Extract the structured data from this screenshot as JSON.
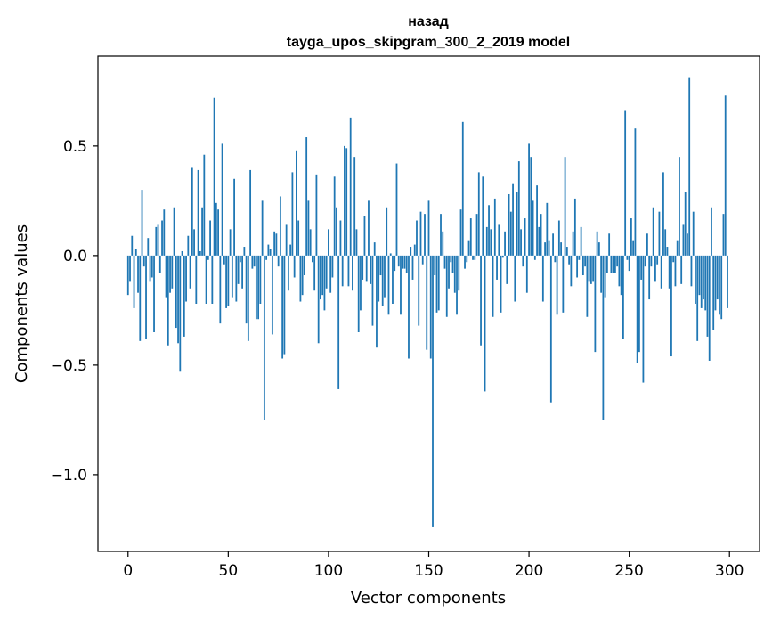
{
  "chart_data": {
    "type": "bar",
    "title": "назад",
    "subtitle": "tayga_upos_skipgram_300_2_2019 model",
    "xlabel": "Vector components",
    "ylabel": "Components values",
    "xlim": [
      -15,
      315
    ],
    "ylim": [
      -1.35,
      0.91
    ],
    "xticks": [
      0,
      50,
      100,
      150,
      200,
      250,
      300
    ],
    "xtick_labels": [
      "0",
      "50",
      "100",
      "150",
      "200",
      "250",
      "300"
    ],
    "yticks": [
      -1.0,
      -0.5,
      0.0,
      0.5
    ],
    "ytick_labels": [
      "−1.0",
      "−0.5",
      "0.0",
      "0.5"
    ],
    "bar_color": "#1f77b4",
    "grid": false,
    "values": [
      -0.18,
      -0.12,
      0.09,
      -0.24,
      0.03,
      -0.17,
      -0.39,
      0.3,
      -0.05,
      -0.38,
      0.08,
      -0.12,
      -0.1,
      -0.35,
      0.13,
      0.14,
      -0.08,
      0.16,
      0.21,
      -0.19,
      -0.41,
      -0.17,
      -0.15,
      0.22,
      -0.33,
      -0.4,
      -0.53,
      0.02,
      -0.37,
      -0.21,
      0.09,
      -0.15,
      0.4,
      0.12,
      -0.22,
      0.39,
      0.02,
      0.22,
      0.46,
      -0.22,
      -0.02,
      0.16,
      -0.22,
      0.72,
      0.24,
      0.21,
      -0.31,
      0.51,
      -0.04,
      -0.24,
      -0.23,
      0.12,
      -0.19,
      0.35,
      -0.21,
      -0.13,
      -0.03,
      -0.15,
      0.04,
      -0.31,
      -0.39,
      0.39,
      -0.06,
      -0.05,
      -0.29,
      -0.29,
      -0.22,
      0.25,
      -0.75,
      -0.02,
      0.05,
      0.03,
      -0.36,
      0.11,
      0.1,
      -0.05,
      0.27,
      -0.47,
      -0.45,
      0.14,
      -0.16,
      0.05,
      0.38,
      -0.1,
      0.48,
      0.16,
      -0.21,
      -0.18,
      -0.09,
      0.54,
      0.25,
      0.12,
      -0.03,
      -0.16,
      0.37,
      -0.4,
      -0.2,
      -0.18,
      -0.25,
      -0.15,
      0.12,
      -0.17,
      -0.1,
      0.36,
      0.22,
      -0.61,
      0.16,
      -0.14,
      0.5,
      0.49,
      -0.14,
      0.63,
      -0.16,
      0.45,
      0.12,
      -0.35,
      -0.25,
      -0.11,
      0.18,
      -0.12,
      0.25,
      -0.13,
      -0.32,
      0.06,
      -0.42,
      -0.21,
      -0.09,
      -0.23,
      -0.19,
      0.22,
      -0.27,
      0.01,
      -0.22,
      -0.07,
      0.42,
      -0.05,
      -0.27,
      -0.06,
      -0.06,
      -0.08,
      -0.47,
      0.04,
      -0.11,
      0.05,
      0.16,
      -0.32,
      0.2,
      -0.04,
      0.19,
      -0.43,
      0.25,
      -0.47,
      -1.24,
      -0.09,
      -0.26,
      -0.25,
      0.19,
      0.11,
      -0.06,
      -0.28,
      -0.15,
      -0.03,
      -0.08,
      -0.17,
      -0.27,
      -0.16,
      0.21,
      0.61,
      -0.06,
      -0.03,
      0.07,
      0.17,
      -0.02,
      -0.02,
      0.19,
      0.38,
      -0.41,
      0.36,
      -0.62,
      0.13,
      0.23,
      0.12,
      -0.28,
      0.26,
      -0.11,
      0.14,
      -0.26,
      -0.01,
      0.11,
      -0.13,
      0.28,
      0.2,
      0.33,
      -0.21,
      0.29,
      0.43,
      0.12,
      -0.05,
      0.17,
      -0.17,
      0.51,
      0.45,
      0.25,
      -0.02,
      0.32,
      0.13,
      0.19,
      -0.21,
      0.06,
      0.24,
      0.07,
      -0.67,
      0.1,
      -0.03,
      -0.27,
      0.16,
      0.06,
      -0.26,
      0.45,
      0.04,
      -0.04,
      -0.14,
      0.11,
      0.26,
      -0.1,
      -0.02,
      0.13,
      -0.09,
      -0.05,
      -0.28,
      -0.12,
      -0.13,
      -0.12,
      -0.44,
      0.11,
      0.06,
      -0.17,
      -0.75,
      -0.19,
      -0.08,
      0.1,
      -0.08,
      -0.08,
      -0.08,
      -0.05,
      -0.14,
      -0.18,
      -0.38,
      0.66,
      -0.02,
      -0.07,
      0.17,
      0.07,
      0.58,
      -0.49,
      -0.44,
      -0.11,
      -0.58,
      -0.05,
      0.1,
      -0.2,
      -0.05,
      0.22,
      -0.12,
      -0.04,
      0.2,
      -0.15,
      0.38,
      0.12,
      0.04,
      -0.15,
      -0.46,
      -0.03,
      -0.14,
      0.07,
      0.45,
      -0.13,
      0.14,
      0.29,
      0.1,
      0.81,
      -0.14,
      0.2,
      -0.22,
      -0.39,
      -0.18,
      -0.24,
      -0.2,
      -0.25,
      -0.37,
      -0.48,
      0.22,
      -0.34,
      -0.25,
      -0.2,
      -0.27,
      -0.29,
      0.19,
      0.73,
      -0.24
    ]
  }
}
